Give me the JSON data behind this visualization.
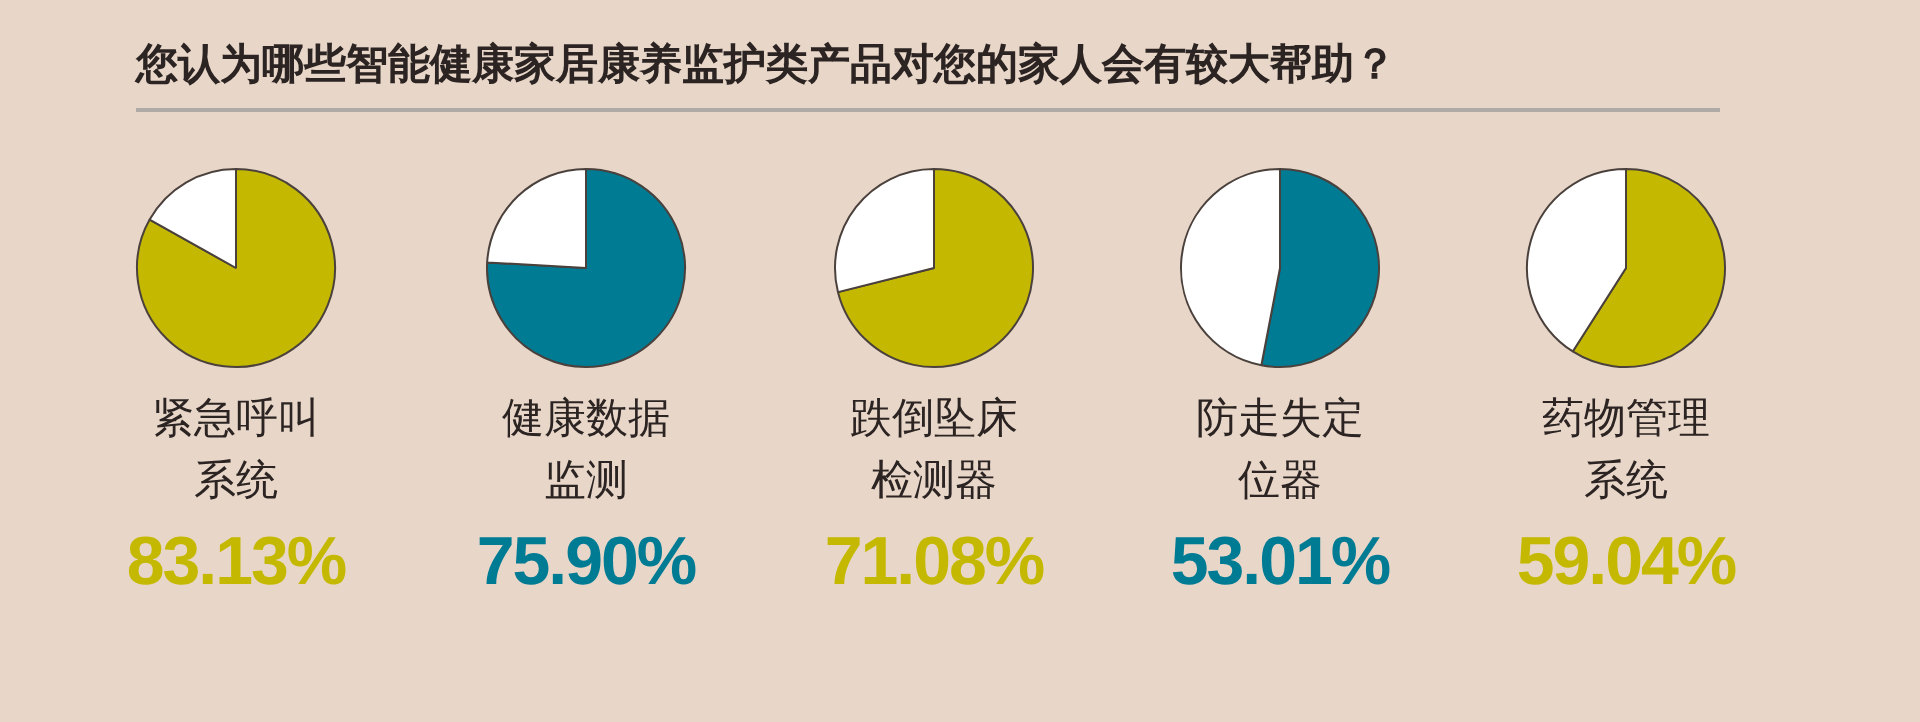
{
  "chart_data": [
    {
      "type": "other",
      "title": "您认为哪些智能健康家居康养监护类产品对您的家人会有较大帮助？"
    },
    {
      "type": "pie",
      "title": "紧急呼叫系统",
      "categories": [
        null,
        null
      ],
      "values": [
        83.13,
        16.87
      ],
      "colors": [
        "#c4b900",
        "#ffffff"
      ],
      "value_labels": [
        "83.13%",
        null
      ]
    },
    {
      "type": "pie",
      "title": "健康数据监测",
      "categories": [
        null,
        null
      ],
      "values": [
        75.9,
        24.1
      ],
      "colors": [
        "#007b94",
        "#ffffff"
      ],
      "value_labels": [
        "75.90%",
        null
      ]
    },
    {
      "type": "pie",
      "title": "跌倒坠床检测器",
      "categories": [
        null,
        null
      ],
      "values": [
        71.08,
        28.92
      ],
      "colors": [
        "#c4b900",
        "#ffffff"
      ],
      "value_labels": [
        "71.08%",
        null
      ]
    },
    {
      "type": "pie",
      "title": "防走失定位器",
      "categories": [
        null,
        null
      ],
      "values": [
        53.01,
        46.99
      ],
      "colors": [
        "#007b94",
        "#ffffff"
      ],
      "value_labels": [
        "53.01%",
        null
      ]
    },
    {
      "type": "pie",
      "title": "药物管理系统",
      "categories": [
        null,
        null
      ],
      "values": [
        59.04,
        40.96
      ],
      "colors": [
        "#c4b900",
        "#ffffff"
      ],
      "value_labels": [
        "59.04%",
        null
      ]
    }
  ]
}
